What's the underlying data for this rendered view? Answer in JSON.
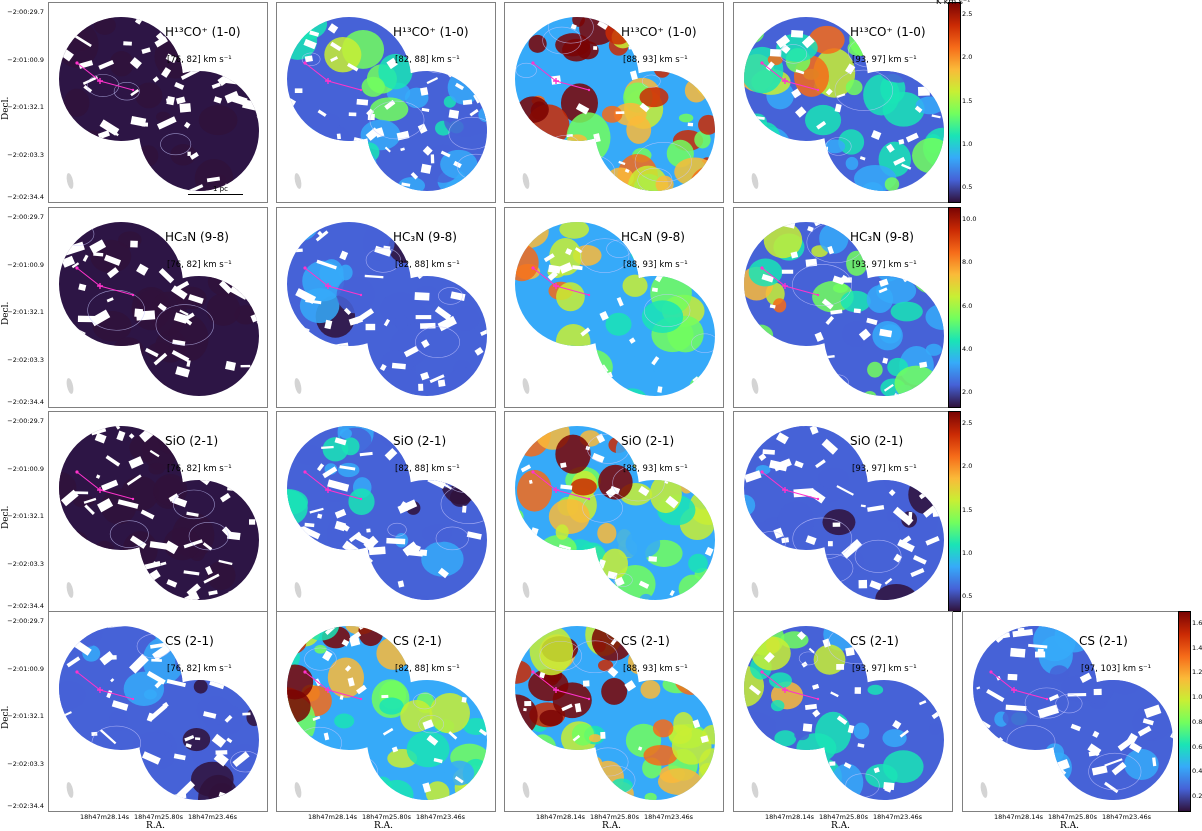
{
  "figure": {
    "colorbar_unit": "K km s⁻¹",
    "ylabel": "Decl.",
    "xlabel": "R.A.",
    "ytick_labels": [
      "−2:00:29.7",
      "−2:01:00.9",
      "−2:01:32.1",
      "−2:02:03.3",
      "−2:02:34.4"
    ],
    "xtick_labels": [
      "18h47m28.14s",
      "18h47m25.80s",
      "18h47m23.46s"
    ],
    "scalebar_label": "1 pc"
  },
  "rows": [
    {
      "molecule": "H¹³CO⁺ (1-0)",
      "colorbar_ticks": [
        "2.5",
        "2.0",
        "1.5",
        "1.0",
        "0.5"
      ],
      "panels": [
        {
          "title": "H¹³CO⁺ (1-0)",
          "range": "[76, 82] km s⁻¹",
          "level": 0.05
        },
        {
          "title": "H¹³CO⁺ (1-0)",
          "range": "[82, 88] km s⁻¹",
          "level": 0.3
        },
        {
          "title": "H¹³CO⁺ (1-0)",
          "range": "[88, 93] km s⁻¹",
          "level": 0.8
        },
        {
          "title": "H¹³CO⁺ (1-0)",
          "range": "[93, 97] km s⁻¹",
          "level": 0.45
        }
      ]
    },
    {
      "molecule": "HC₃N (9-8)",
      "colorbar_ticks": [
        "10.0",
        "8.0",
        "6.0",
        "4.0",
        "2.0"
      ],
      "panels": [
        {
          "title": "HC₃N (9-8)",
          "range": "[76, 82] km s⁻¹",
          "level": 0.02
        },
        {
          "title": "HC₃N (9-8)",
          "range": "[82, 88] km s⁻¹",
          "level": 0.15
        },
        {
          "title": "HC₃N (9-8)",
          "range": "[88, 93] km s⁻¹",
          "level": 0.5
        },
        {
          "title": "HC₃N (9-8)",
          "range": "[93, 97] km s⁻¹",
          "level": 0.4
        }
      ]
    },
    {
      "molecule": "SiO (2-1)",
      "colorbar_ticks": [
        "2.5",
        "2.0",
        "1.5",
        "1.0",
        "0.5"
      ],
      "panels": [
        {
          "title": "SiO (2-1)",
          "range": "[76, 82] km s⁻¹",
          "level": 0.02
        },
        {
          "title": "SiO (2-1)",
          "range": "[82, 88] km s⁻¹",
          "level": 0.2
        },
        {
          "title": "SiO (2-1)",
          "range": "[88, 93] km s⁻¹",
          "level": 0.55
        },
        {
          "title": "SiO (2-1)",
          "range": "[93, 97] km s⁻¹",
          "level": 0.15
        }
      ]
    },
    {
      "molecule": "CS (2-1)",
      "colorbar_ticks": [
        "1.6",
        "1.4",
        "1.2",
        "1.0",
        "0.8",
        "0.6",
        "0.4",
        "0.2"
      ],
      "panels": [
        {
          "title": "CS (2-1)",
          "range": "[76, 82] km s⁻¹",
          "level": 0.15
        },
        {
          "title": "CS (2-1)",
          "range": "[82, 88] km s⁻¹",
          "level": 0.55
        },
        {
          "title": "CS (2-1)",
          "range": "[88, 93] km s⁻¹",
          "level": 0.7
        },
        {
          "title": "CS (2-1)",
          "range": "[93, 97] km s⁻¹",
          "level": 0.35
        },
        {
          "title": "CS (2-1)",
          "range": "[97, 103] km s⁻¹",
          "level": 0.2
        }
      ]
    }
  ],
  "colors": {
    "colormap": [
      "#30123b",
      "#4662d7",
      "#36aaf9",
      "#1ae4b6",
      "#72fe5e",
      "#c8ef34",
      "#faba39",
      "#f66b19",
      "#ca2a04",
      "#7a0403"
    ],
    "outflow_line": "#ff33cc",
    "mask_color": "#2d1545",
    "panel_border": "#808080"
  }
}
